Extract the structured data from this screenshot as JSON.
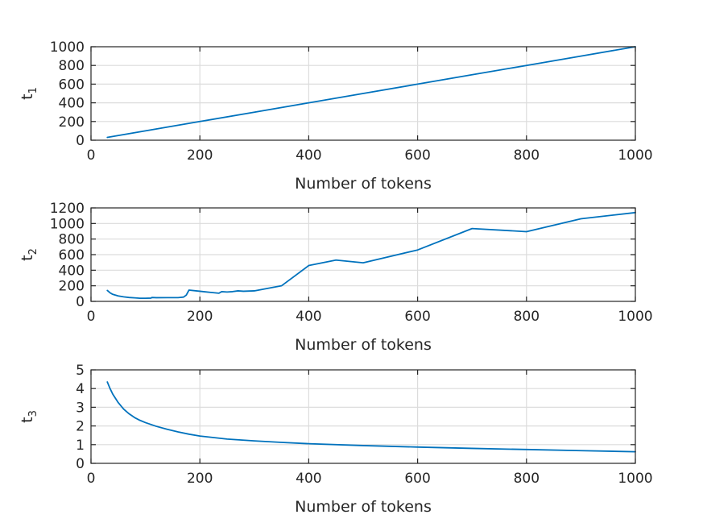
{
  "chart_data": [
    {
      "type": "line",
      "xlabel": "Number of tokens",
      "ylabel_main": "t",
      "ylabel_sub": "1",
      "xlim": [
        0,
        1000
      ],
      "ylim": [
        0,
        1000
      ],
      "xticks": [
        0,
        200,
        400,
        600,
        800,
        1000
      ],
      "yticks": [
        0,
        200,
        400,
        600,
        800,
        1000
      ],
      "grid": true,
      "color": "#0072BD",
      "series": [
        {
          "x": [
            30,
            100,
            200,
            300,
            400,
            500,
            600,
            700,
            800,
            900,
            1000
          ],
          "y": [
            30,
            100,
            200,
            300,
            400,
            500,
            600,
            700,
            800,
            900,
            1000
          ]
        }
      ]
    },
    {
      "type": "line",
      "xlabel": "Number of tokens",
      "ylabel_main": "t",
      "ylabel_sub": "2",
      "xlim": [
        0,
        1000
      ],
      "ylim": [
        0,
        1200
      ],
      "xticks": [
        0,
        200,
        400,
        600,
        800,
        1000
      ],
      "yticks": [
        0,
        200,
        400,
        600,
        800,
        1000,
        1200
      ],
      "grid": true,
      "color": "#0072BD",
      "series": [
        {
          "x": [
            30,
            35,
            40,
            50,
            60,
            70,
            80,
            90,
            100,
            110,
            112,
            120,
            140,
            160,
            170,
            175,
            180,
            200,
            220,
            235,
            240,
            250,
            260,
            270,
            280,
            300,
            350,
            400,
            450,
            500,
            600,
            700,
            800,
            900,
            1000
          ],
          "y": [
            140,
            110,
            90,
            70,
            58,
            50,
            45,
            40,
            40,
            42,
            50,
            47,
            48,
            48,
            55,
            80,
            145,
            130,
            115,
            105,
            125,
            120,
            125,
            135,
            130,
            135,
            200,
            460,
            530,
            495,
            660,
            935,
            895,
            1060,
            1140
          ]
        }
      ]
    },
    {
      "type": "line",
      "xlabel": "Number of tokens",
      "ylabel_main": "t",
      "ylabel_sub": "3",
      "xlim": [
        0,
        1000
      ],
      "ylim": [
        0,
        5
      ],
      "xticks": [
        0,
        200,
        400,
        600,
        800,
        1000
      ],
      "yticks": [
        0,
        1,
        2,
        3,
        4,
        5
      ],
      "grid": true,
      "color": "#0072BD",
      "series": [
        {
          "x": [
            30,
            35,
            40,
            50,
            60,
            70,
            80,
            90,
            100,
            120,
            140,
            160,
            180,
            200,
            250,
            300,
            350,
            400,
            500,
            600,
            700,
            800,
            900,
            1000
          ],
          "y": [
            4.35,
            4.0,
            3.7,
            3.25,
            2.9,
            2.65,
            2.45,
            2.3,
            2.18,
            1.98,
            1.82,
            1.68,
            1.56,
            1.46,
            1.3,
            1.2,
            1.12,
            1.05,
            0.95,
            0.87,
            0.8,
            0.74,
            0.68,
            0.62
          ]
        }
      ]
    }
  ]
}
